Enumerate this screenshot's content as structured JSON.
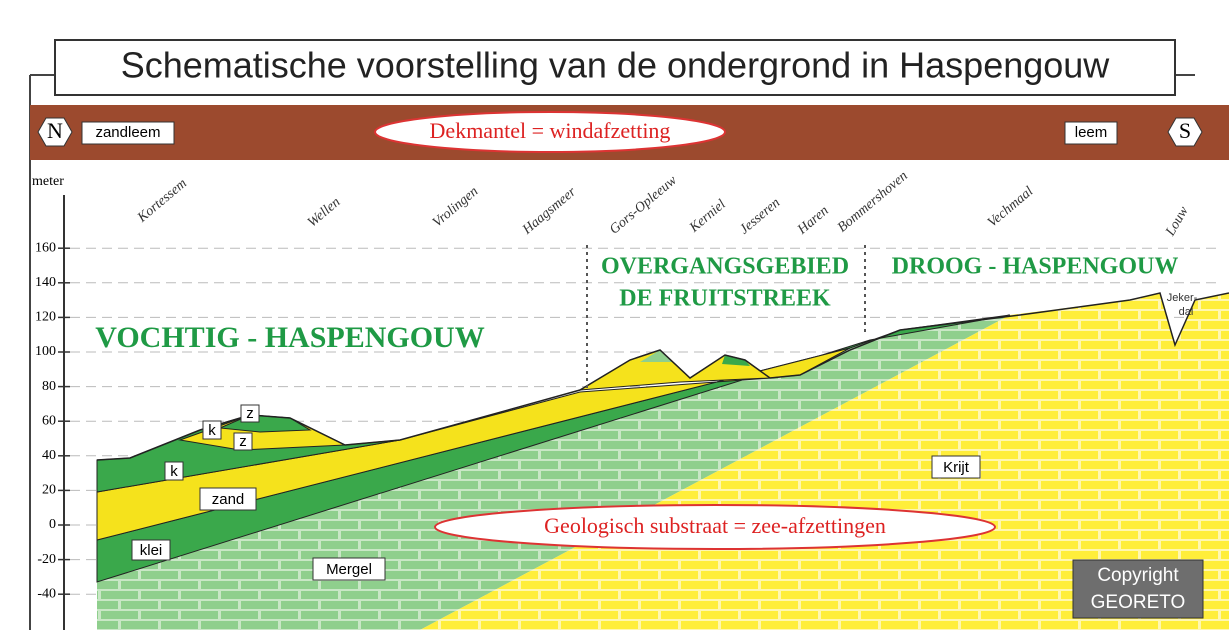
{
  "title": "Schematische voorstelling van de ondergrond in Haspengouw",
  "header": {
    "north": "N",
    "south": "S",
    "left_label": "zandleem",
    "center_label": "Dekmantel = windafzetting",
    "right_label": "leem"
  },
  "axis": {
    "label": "meter",
    "ticks": [
      160,
      140,
      120,
      100,
      80,
      60,
      40,
      20,
      0,
      -20,
      -40
    ]
  },
  "places": [
    "Kortessem",
    "Wellen",
    "Vrolingen",
    "Haagsmeer",
    "Gors-Opleeuw",
    "Kerniel",
    "Jesseren",
    "Haren",
    "Bommershoven",
    "Vechmaal",
    "Louw"
  ],
  "regions": {
    "wet": "VOCHTIG - HASPENGOUW",
    "transition": [
      "OVERGANGSGEBIED",
      "DE FRUITSTREEK"
    ],
    "dry": "DROOG - HASPENGOUW"
  },
  "layer_labels": [
    "k",
    "z",
    "z",
    "k",
    "zand",
    "klei",
    "Mergel",
    "Krijt"
  ],
  "valley_label": [
    "Jeker-",
    "dal"
  ],
  "substrate_label": "Geologisch substraat = zee-afzettingen",
  "copyright": [
    "Copyright",
    "GEORETO"
  ]
}
